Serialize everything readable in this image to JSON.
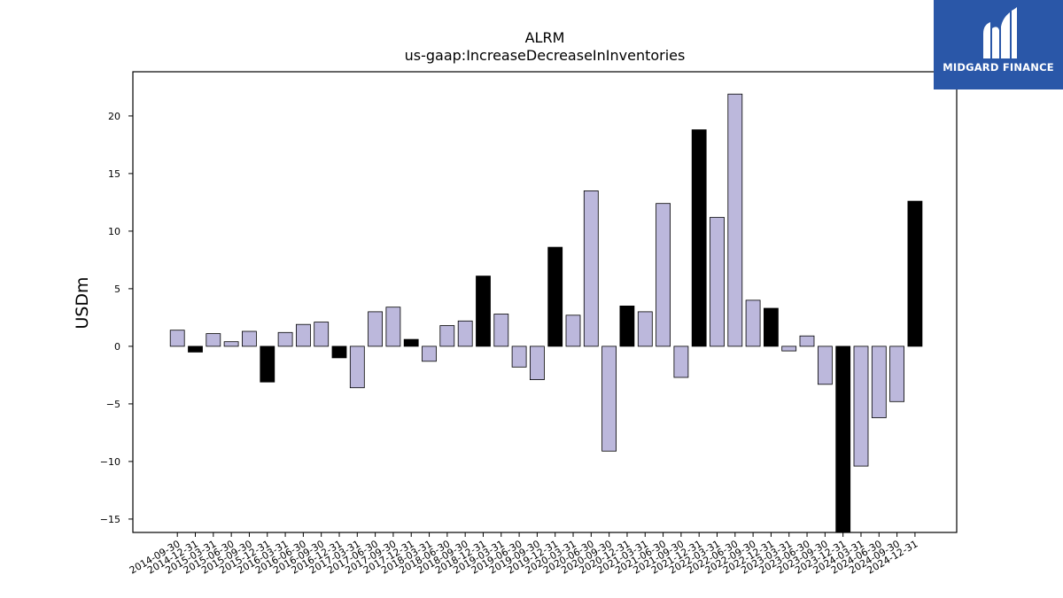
{
  "logo": {
    "text": "MIDGARD FINANCE",
    "bg": "#2a57a8"
  },
  "chart_data": {
    "type": "bar",
    "title": "ALRM",
    "subtitle": "us-gaap:IncreaseDecreaseInInventories",
    "ylabel": "USDm",
    "xlabel": "",
    "ylim": [
      -16.2,
      23.8
    ],
    "yticks": [
      -15,
      -10,
      -5,
      0,
      5,
      10,
      15,
      20
    ],
    "ytick_labels": [
      "−15",
      "−10",
      "−5",
      "0",
      "5",
      "10",
      "15",
      "20"
    ],
    "colors": {
      "default": "#bcb8dc",
      "highlight": "#000000"
    },
    "categories": [
      "2014-09-30",
      "2014-12-31",
      "2015-03-31",
      "2015-06-30",
      "2015-09-30",
      "2015-12-31",
      "2016-03-31",
      "2016-06-30",
      "2016-09-30",
      "2016-12-31",
      "2017-03-31",
      "2017-06-30",
      "2017-09-30",
      "2017-12-31",
      "2018-03-31",
      "2018-06-30",
      "2018-09-30",
      "2018-12-31",
      "2019-03-31",
      "2019-06-30",
      "2019-09-30",
      "2019-12-31",
      "2020-03-31",
      "2020-06-30",
      "2020-09-30",
      "2020-12-31",
      "2021-03-31",
      "2021-06-30",
      "2021-09-30",
      "2021-12-31",
      "2022-03-31",
      "2022-06-30",
      "2022-09-30",
      "2022-12-31",
      "2023-03-31",
      "2023-06-30",
      "2023-09-30",
      "2023-12-31",
      "2024-03-31",
      "2024-06-30",
      "2024-09-30",
      "2024-12-31"
    ],
    "values": [
      1.4,
      -0.5,
      1.1,
      0.4,
      1.3,
      -3.1,
      1.2,
      1.9,
      2.1,
      -1.0,
      -3.6,
      3.0,
      3.4,
      0.6,
      -1.3,
      1.8,
      2.2,
      6.1,
      2.8,
      -1.8,
      -2.9,
      8.6,
      2.7,
      13.5,
      -9.1,
      3.5,
      3.0,
      12.4,
      -2.7,
      18.8,
      11.2,
      21.9,
      4.0,
      3.3,
      -0.4,
      0.9,
      -3.3,
      -16.2,
      -10.4,
      -6.2,
      -4.8,
      12.6
    ],
    "highlight": [
      false,
      true,
      false,
      false,
      false,
      true,
      false,
      false,
      false,
      true,
      false,
      false,
      false,
      true,
      false,
      false,
      false,
      true,
      false,
      false,
      false,
      true,
      false,
      false,
      false,
      true,
      false,
      false,
      false,
      true,
      false,
      false,
      false,
      true,
      false,
      false,
      false,
      true,
      false,
      false,
      false,
      true
    ]
  }
}
